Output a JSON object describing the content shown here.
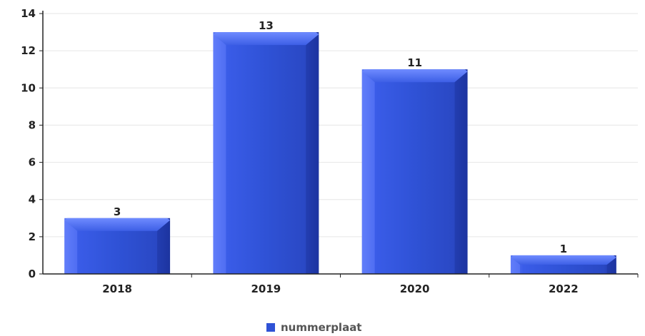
{
  "chart_data": {
    "type": "bar",
    "categories": [
      "2018",
      "2019",
      "2020",
      "2022"
    ],
    "series": [
      {
        "name": "nummerplaat",
        "values": [
          3,
          13,
          11,
          1
        ]
      }
    ],
    "ylim": [
      0,
      14
    ],
    "yticks": [
      0,
      2,
      4,
      6,
      8,
      10,
      12,
      14
    ],
    "grid": true,
    "legend": "bottom-center",
    "colors": {
      "bar": "#2f52d6",
      "bar_highlight": "#5a78f5",
      "bar_shadow": "#1d34a0"
    }
  }
}
